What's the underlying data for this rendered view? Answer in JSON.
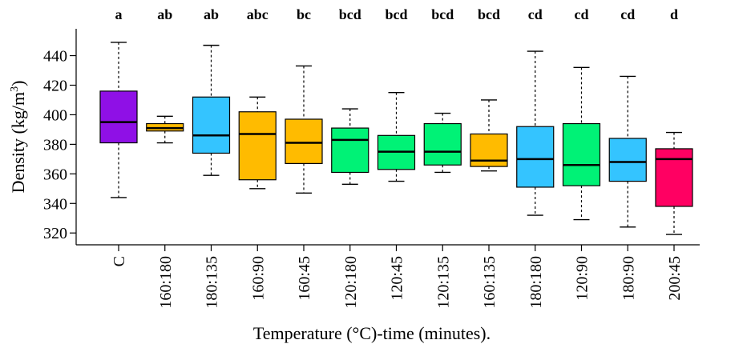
{
  "chart_data": {
    "type": "box",
    "xlabel": "Temperature (°C)-time (minutes).",
    "ylabel_main": "Density (kg/m",
    "ylabel_sup": "3",
    "ylabel_end": ")",
    "ylim": [
      312,
      456
    ],
    "yticks": [
      320,
      340,
      360,
      380,
      400,
      420,
      440
    ],
    "grid": false,
    "colors": {
      "purple": "#8f10e6",
      "orange": "#ffbb00",
      "blue": "#34c4ff",
      "green": "#00f276",
      "pink": "#ff0062"
    },
    "boxes": [
      {
        "category": "C",
        "letter": "a",
        "color": "purple",
        "min": 344,
        "q1": 381,
        "median": 395,
        "q3": 416,
        "max": 449
      },
      {
        "category": "160:180",
        "letter": "ab",
        "color": "orange",
        "min": 381,
        "q1": 389,
        "median": 391,
        "q3": 394,
        "max": 399
      },
      {
        "category": "180:135",
        "letter": "ab",
        "color": "blue",
        "min": 359,
        "q1": 374,
        "median": 386,
        "q3": 412,
        "max": 447
      },
      {
        "category": "160:90",
        "letter": "abc",
        "color": "orange",
        "min": 350,
        "q1": 356,
        "median": 387,
        "q3": 402,
        "max": 412
      },
      {
        "category": "160:45",
        "letter": "bc",
        "color": "orange",
        "min": 347,
        "q1": 367,
        "median": 381,
        "q3": 397,
        "max": 433
      },
      {
        "category": "120:180",
        "letter": "bcd",
        "color": "green",
        "min": 353,
        "q1": 361,
        "median": 383,
        "q3": 391,
        "max": 404
      },
      {
        "category": "120:45",
        "letter": "bcd",
        "color": "green",
        "min": 355,
        "q1": 363,
        "median": 375,
        "q3": 386,
        "max": 415
      },
      {
        "category": "120:135",
        "letter": "bcd",
        "color": "green",
        "min": 361,
        "q1": 366,
        "median": 375,
        "q3": 394,
        "max": 401
      },
      {
        "category": "160:135",
        "letter": "bcd",
        "color": "orange",
        "min": 362,
        "q1": 365,
        "median": 369,
        "q3": 387,
        "max": 410
      },
      {
        "category": "180:180",
        "letter": "cd",
        "color": "blue",
        "min": 332,
        "q1": 351,
        "median": 370,
        "q3": 392,
        "max": 443
      },
      {
        "category": "120:90",
        "letter": "cd",
        "color": "green",
        "min": 329,
        "q1": 352,
        "median": 366,
        "q3": 394,
        "max": 432
      },
      {
        "category": "180:90",
        "letter": "cd",
        "color": "blue",
        "min": 324,
        "q1": 355,
        "median": 368,
        "q3": 384,
        "max": 426
      },
      {
        "category": "200:45",
        "letter": "d",
        "color": "pink",
        "min": 319,
        "q1": 338,
        "median": 370,
        "q3": 377,
        "max": 388
      }
    ]
  }
}
